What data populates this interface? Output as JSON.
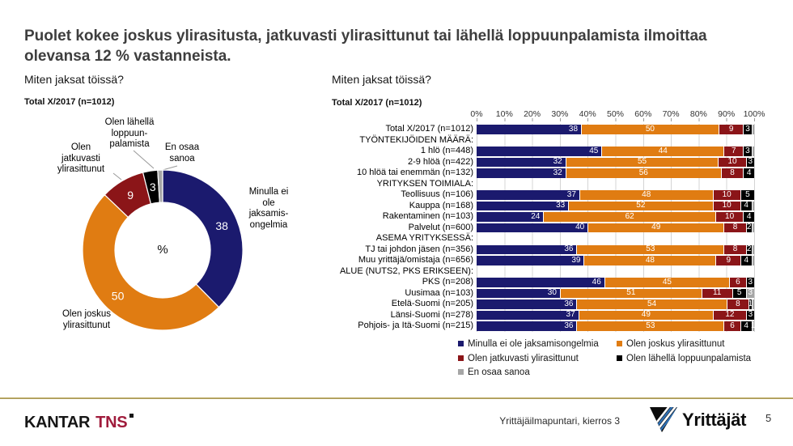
{
  "title": "Puolet kokee joskus ylirasitusta, jatkuvasti ylirasittunut tai lähellä loppuunpalamista ilmoittaa olevansa 12 % vastanneista.",
  "colors": {
    "navy": "#1B1A6E",
    "orange": "#E07C12",
    "dark_red": "#8B1518",
    "black": "#000000",
    "gray": "#A6A6A6",
    "gridline": "#D4D4D4",
    "gold_line": "#B5A45C",
    "tns_red": "#A01C3C",
    "yrittajat_blue": "#2F6FB2"
  },
  "donut": {
    "question": "Miten jaksat töissä?",
    "subtitle": "Total X/2017 (n=1012)",
    "center_label": "%",
    "callouts": {
      "burnout": "Olen lähellä\nloppuun-\npalamista",
      "dont_know": "En osaa\nsanoa",
      "continuous": "Olen\njatkuvasti\nylirasittunut",
      "no_problems": "Minulla ei\nole\njaksamis-\nongelmia",
      "sometimes": "Olen joskus\nylirasittunut"
    }
  },
  "bars": {
    "question": "Miten jaksat töissä?",
    "subtitle": "Total X/2017 (n=1012)"
  },
  "chart_data": [
    {
      "type": "pie",
      "donut": true,
      "title": "Miten jaksat töissä? – Total X/2017 (n=1012)",
      "unit": "%",
      "labels": [
        "Minulla ei ole jaksamisongelmia",
        "Olen joskus ylirasittunut",
        "Olen jatkuvasti ylirasittunut",
        "Olen lähellä loppuunpalamista",
        "En osaa sanoa"
      ],
      "values": [
        38,
        50,
        9,
        3,
        1
      ],
      "color_keys": [
        "navy",
        "orange",
        "dark_red",
        "black",
        "gray"
      ]
    },
    {
      "type": "bar",
      "stacked": true,
      "orientation": "horizontal",
      "title": "Miten jaksat töissä? – Total X/2017 (n=1012)",
      "xlim": [
        0,
        100
      ],
      "x_ticks": [
        "0%",
        "10%",
        "20%",
        "30%",
        "40%",
        "50%",
        "60%",
        "70%",
        "80%",
        "90%",
        "100%"
      ],
      "series": [
        "Minulla ei ole jaksamisongelmia",
        "Olen joskus ylirasittunut",
        "Olen jatkuvasti ylirasittunut",
        "Olen lähellä loppuunpalamista",
        "En osaa sanoa"
      ],
      "color_keys": [
        "navy",
        "orange",
        "dark_red",
        "black",
        "gray"
      ],
      "legend_columns": [
        [
          0,
          2,
          4
        ],
        [
          1,
          3
        ]
      ],
      "rows": [
        {
          "label": "Total X/2017 (n=1012)",
          "values": [
            38,
            50,
            9,
            3,
            1
          ],
          "labels": [
            "38",
            "50",
            "9",
            "3",
            ""
          ]
        },
        {
          "label": "TYÖNTEKIJÖIDEN MÄÄRÄ:",
          "header": true
        },
        {
          "label": "1 hlö (n=448)",
          "values": [
            45,
            44,
            7,
            3,
            1
          ],
          "labels": [
            "45",
            "44",
            "7",
            "3",
            ""
          ]
        },
        {
          "label": "2-9 hlöä (n=422)",
          "values": [
            32,
            55,
            10,
            3,
            0
          ],
          "labels": [
            "32",
            "55",
            "10",
            "3",
            ""
          ]
        },
        {
          "label": "10 hlöä tai enemmän (n=132)",
          "values": [
            32,
            56,
            8,
            4,
            0
          ],
          "labels": [
            "32",
            "56",
            "8",
            "4",
            ""
          ]
        },
        {
          "label": "YRITYKSEN TOIMIALA:",
          "header": true
        },
        {
          "label": "Teollisuus (n=106)",
          "values": [
            37,
            48,
            10,
            5,
            0
          ],
          "labels": [
            "37",
            "48",
            "10",
            "5",
            ""
          ]
        },
        {
          "label": "Kauppa (n=168)",
          "values": [
            33,
            52,
            10,
            4,
            1
          ],
          "labels": [
            "33",
            "52",
            "10",
            "4",
            ""
          ]
        },
        {
          "label": "Rakentaminen (n=103)",
          "values": [
            24,
            62,
            10,
            4,
            0
          ],
          "labels": [
            "24",
            "62",
            "10",
            "4",
            ""
          ]
        },
        {
          "label": "Palvelut (n=600)",
          "values": [
            40,
            49,
            8,
            2,
            1
          ],
          "labels": [
            "40",
            "49",
            "8",
            "2",
            ""
          ]
        },
        {
          "label": "ASEMA YRITYKSESSÄ:",
          "header": true
        },
        {
          "label": "TJ tai johdon jäsen (n=356)",
          "values": [
            36,
            53,
            8,
            2,
            1
          ],
          "labels": [
            "36",
            "53",
            "8",
            "2",
            ""
          ]
        },
        {
          "label": "Muu yrittäjä/omistaja (n=656)",
          "values": [
            39,
            48,
            9,
            4,
            1
          ],
          "labels": [
            "39",
            "48",
            "9",
            "4",
            ""
          ]
        },
        {
          "label": "ALUE (NUTS2, PKS ERIKSEEN):",
          "header": true
        },
        {
          "label": "PKS (n=208)",
          "values": [
            46,
            45,
            6,
            3,
            0
          ],
          "labels": [
            "46",
            "45",
            "6",
            "3",
            ""
          ]
        },
        {
          "label": "Uusimaa (n=103)",
          "values": [
            30,
            51,
            11,
            5,
            3
          ],
          "labels": [
            "30",
            "51",
            "11",
            "5",
            "3"
          ]
        },
        {
          "label": "Etelä-Suomi (n=205)",
          "values": [
            36,
            54,
            8,
            1,
            1
          ],
          "labels": [
            "36",
            "54",
            "8",
            "1",
            ""
          ]
        },
        {
          "label": "Länsi-Suomi (n=278)",
          "values": [
            37,
            49,
            12,
            3,
            0
          ],
          "labels": [
            "37",
            "49",
            "12",
            "3",
            ""
          ]
        },
        {
          "label": "Pohjois- ja Itä-Suomi (n=215)",
          "values": [
            36,
            53,
            6,
            4,
            1
          ],
          "labels": [
            "36",
            "53",
            "6",
            "4",
            "1"
          ]
        }
      ]
    }
  ],
  "footer": {
    "logo_kantar": "KANTAR",
    "logo_tns": "TNS",
    "report_label": "Yrittäjäilmapuntari, kierros 3",
    "brand": "Yrittäjät",
    "page_number": "5"
  }
}
